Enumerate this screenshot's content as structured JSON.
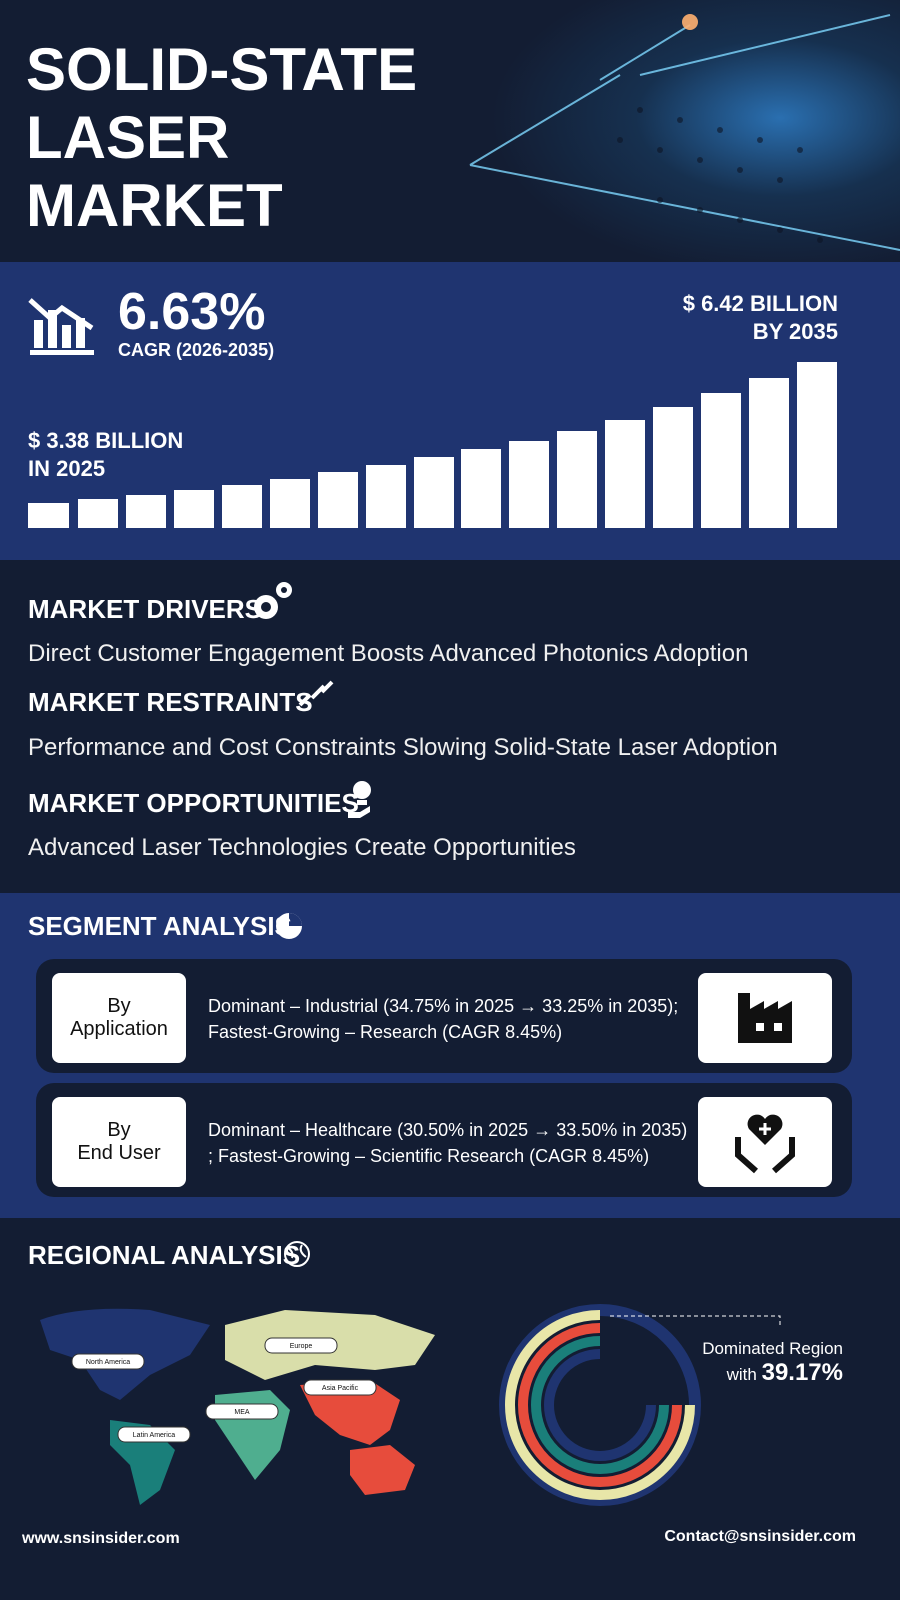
{
  "header": {
    "title": [
      "SOLID-STATE",
      "LASER",
      "MARKET"
    ]
  },
  "growth": {
    "cagr": "6.63%",
    "cagr_label": "CAGR (2026-2035)",
    "end_value": [
      "$ 6.42 BILLION",
      "BY 2035"
    ],
    "start_value": [
      "$ 3.38 BILLION",
      "IN 2025"
    ]
  },
  "market": {
    "drivers": {
      "heading": "MARKET DRIVERS",
      "text": "Direct Customer Engagement Boosts Advanced Photonics Adoption"
    },
    "restraints": {
      "heading": "MARKET RESTRAINTS",
      "text": "Performance and Cost Constraints Slowing Solid-State Laser Adoption"
    },
    "opportunities": {
      "heading": "MARKET OPPORTUNITIES",
      "text": "Advanced Laser Technologies Create Opportunities"
    }
  },
  "segment": {
    "title": "SEGMENT ANALYSIS",
    "rows": [
      {
        "label": [
          "By",
          "Application"
        ],
        "text": [
          "Dominant – Industrial (34.75% in 2025 → 33.25% in 2035);",
          "Fastest-Growing – Research (CAGR 8.45%)"
        ]
      },
      {
        "label": [
          "By",
          "End User"
        ],
        "text": [
          "Dominant – Healthcare (30.50% in 2025 → 33.50% in 2035)",
          "; Fastest-Growing – Scientific Research (CAGR 8.45%)"
        ]
      }
    ]
  },
  "regional": {
    "title": "REGIONAL ANALYSIS",
    "regions": [
      "North America",
      "Europe",
      "Asia Pacific",
      "MEA",
      "Latin America"
    ],
    "dominated_label": "Dominated Region",
    "with": "with",
    "share": "39.17%"
  },
  "footer": {
    "website": "www.snsinsider.com",
    "contact": "Contact@snsinsider.com"
  }
}
